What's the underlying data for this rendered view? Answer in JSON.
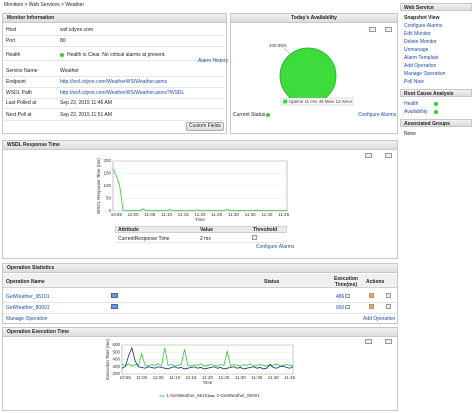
{
  "breadcrumb": "Monitors > Web Services > Weather",
  "monitor_info": {
    "title": "Monitor Information",
    "rows": [
      [
        "Host",
        "wsf.cdyne.com"
      ],
      [
        "Port",
        "80"
      ],
      [
        "Health",
        "Health is Clear. No critical alarms at present."
      ],
      [
        "Service Name",
        "Weather"
      ],
      [
        "Endpoint",
        "http://wsf.cdyne.com/WeatherWS/Weather.asmx"
      ],
      [
        "WSDL Path",
        "http://wsf.cdyne.com/WeatherWS/Weather.asmx?WSDL"
      ],
      [
        "Last Polled at",
        "Sep 22, 2015 11:46 AM"
      ],
      [
        "Next Poll at",
        "Sep 22, 2015 11:51 AM"
      ]
    ],
    "alarm_history": "Alarm History",
    "custom_fields": "Custom Fields"
  },
  "availability": {
    "current_status": "Current Status",
    "configure_alarms": "Configure Alarms"
  },
  "wsdl_table": {
    "headers": [
      "Attribute",
      "Value",
      "Threshold"
    ],
    "row": [
      "CurrentResponse Time",
      "2 ms"
    ],
    "configure_alarms": "Configure Alarms"
  },
  "operations": {
    "title": "Operation Statistics",
    "headers": [
      "Operation Name",
      "Status",
      "Execution Time(ms)",
      "Actions"
    ],
    "rows": [
      [
        "GetWeather_95101",
        "486"
      ],
      [
        "GetWeather_80001",
        "650"
      ]
    ],
    "manage": "Manage Operation",
    "add": "Add Operation"
  },
  "sidebar": {
    "sections": [
      {
        "title": "Web Service",
        "items": [
          "Snapshot View",
          "Configure Alarms",
          "Edit Monitor",
          "Delete Monitor",
          "Unmanage",
          "Alarm Template",
          "Add Operation",
          "Manage Operation",
          "Poll Now"
        ]
      },
      {
        "title": "Root Cause Analysis",
        "items": [
          "Health",
          "Availability"
        ]
      },
      {
        "title": "Associated Groups",
        "items": [
          "None"
        ]
      }
    ]
  },
  "chart_data": [
    {
      "type": "pie",
      "title": "Today's Availability",
      "categories": [
        "Uptime 11 Hrs 46 Mins 12 Secs"
      ],
      "values": [
        100
      ],
      "value_labels": [
        "100.00%"
      ],
      "colors": [
        "#3ddc3d"
      ]
    },
    {
      "type": "line",
      "title": "WSDL Response Time",
      "ylabel": "WSDL Response Time (ms)",
      "xlabel": "Time",
      "categories": [
        null,
        "10:55",
        null,
        null,
        null,
        null,
        "11:00",
        null,
        null,
        null,
        null,
        "11:05",
        null,
        null,
        null,
        null,
        "11:10",
        null,
        null,
        null,
        null,
        "11:15",
        null,
        null,
        null,
        null,
        "11:20",
        null,
        null,
        null,
        null,
        "11:25",
        null,
        null,
        null,
        null,
        "11:30",
        null,
        null,
        null,
        null,
        "11:35",
        null,
        null,
        null,
        null,
        "11:40",
        null,
        null,
        null,
        null,
        "11:45",
        null
      ],
      "values": [
        170,
        140,
        100,
        4,
        2,
        2,
        3,
        2,
        2,
        8,
        2,
        2,
        2,
        3,
        2,
        2,
        2,
        6,
        2,
        2,
        3,
        2,
        2,
        2,
        2,
        5,
        2,
        2,
        2,
        3,
        2,
        2,
        2,
        2,
        7,
        2,
        2,
        2,
        3,
        2,
        2,
        2,
        2,
        4,
        2,
        2,
        2,
        3,
        2,
        2,
        2,
        2,
        3
      ],
      "color": "#33cc33",
      "ylim": [
        0,
        200
      ],
      "yticks": [
        0,
        50,
        100,
        150,
        200
      ],
      "grid": true
    },
    {
      "type": "line",
      "title": "Operation Execution Time",
      "ylabel": "Execution Time (ms)",
      "xlabel": "Time",
      "categories": [
        null,
        "10:55",
        null,
        null,
        null,
        null,
        "11:00",
        null,
        null,
        null,
        null,
        "11:05",
        null,
        null,
        null,
        null,
        "11:10",
        null,
        null,
        null,
        null,
        "11:15",
        null,
        null,
        null,
        null,
        "11:20",
        null,
        null,
        null,
        null,
        "11:25",
        null,
        null,
        null,
        null,
        "11:30",
        null,
        null,
        null,
        null,
        "11:35",
        null,
        null,
        null,
        null,
        "11:40",
        null,
        null,
        null,
        null,
        "11:45",
        null
      ],
      "series": [
        {
          "name": "1-GetWeather_95101",
          "color": "#33cc33",
          "values": [
            330,
            320,
            340,
            310,
            330,
            320,
            480,
            320,
            310,
            330,
            320,
            340,
            310,
            560,
            320,
            330,
            310,
            320,
            330,
            540,
            320,
            310,
            330,
            320,
            340,
            310,
            320,
            330,
            320,
            310,
            330,
            320,
            520,
            310,
            330,
            320,
            310,
            330,
            320,
            340,
            310,
            320,
            330,
            320,
            310,
            330,
            320,
            340,
            310,
            320,
            330,
            320,
            310
          ]
        },
        {
          "name": "2-GetWeather_80001",
          "color": "#1a2a8c",
          "values": [
            280,
            300,
            450,
            560,
            380,
            300,
            290,
            280,
            300,
            290,
            280,
            300,
            290,
            280,
            270,
            290,
            300,
            280,
            290,
            270,
            280,
            290,
            300,
            280,
            290,
            270,
            280,
            290,
            300,
            280,
            290,
            270,
            280,
            290,
            300,
            280,
            290,
            270,
            280,
            290,
            300,
            280,
            290,
            270,
            280,
            330,
            290,
            280,
            300,
            310,
            290,
            280,
            300
          ]
        }
      ],
      "ylim": [
        200,
        600
      ],
      "yticks": [
        200,
        300,
        400,
        500,
        600
      ],
      "grid": true,
      "legend": "bottom"
    }
  ]
}
